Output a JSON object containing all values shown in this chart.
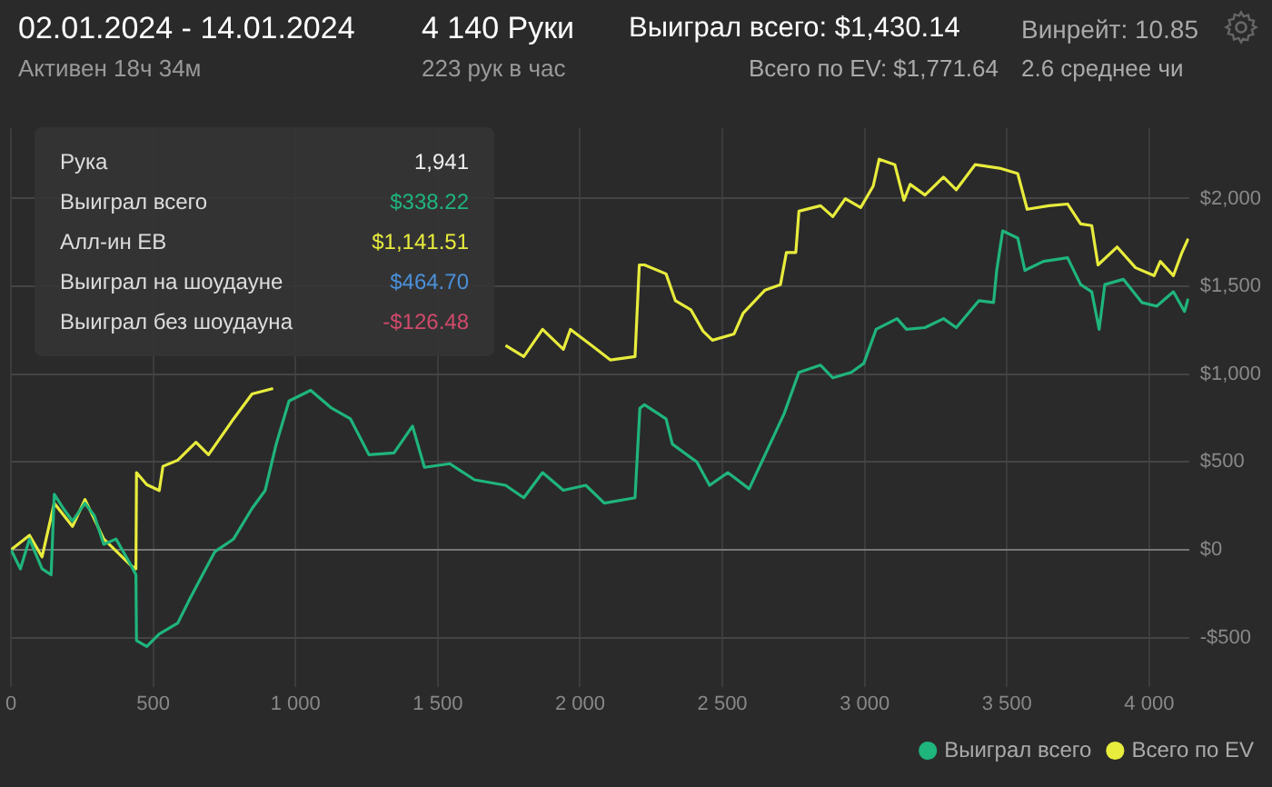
{
  "chart_data": {
    "type": "line",
    "title": "02.01.2024 - 14.01.2024",
    "subtitle": "Активен 18ч 34м",
    "annotations": [
      "4 140 Руки",
      "223 рук в час",
      "Выиграл всего: $1,430.14",
      "Всего по EV: $1,771.64",
      "Винрейт: 10.85",
      "2.6 среднее чи",
      "Рука",
      "1,941",
      "Выиграл всего",
      "$338.22",
      "Алл-ин EB",
      "$1,141.51",
      "Выиграл на шоудауне",
      "$464.70",
      "Выиграл без шоудауна",
      "-$126.48"
    ],
    "xlim": [
      0,
      4140
    ],
    "ylim": [
      -780,
      2400
    ],
    "xticks": [
      0,
      500,
      {
        "value": 1000,
        "label": "1 000"
      },
      {
        "value": 1500,
        "label": "1 500"
      },
      {
        "value": 2000,
        "label": "2 000"
      },
      {
        "value": 2500,
        "label": "2 500"
      },
      {
        "value": 3000,
        "label": "3 000"
      },
      {
        "value": 3500,
        "label": "3 500"
      },
      {
        "value": 4000,
        "label": "4 000"
      }
    ],
    "yticks": [
      {
        "value": -500,
        "label": "-$500"
      },
      {
        "value": 0,
        "label": "$0"
      },
      {
        "value": 500,
        "label": "$500"
      },
      {
        "value": 1000,
        "label": "$1,000"
      },
      {
        "value": 1500,
        "label": "$1,500"
      },
      {
        "value": 2000,
        "label": "$2,000"
      }
    ],
    "grid": true,
    "legend": "bottom right",
    "marker": "none",
    "line_style": "solid",
    "series": [
      {
        "name": "Выиграл всего",
        "color": "#1fb57c",
        "x": [
          0,
          33,
          65,
          109,
          141,
          152,
          184,
          216,
          260,
          293,
          326,
          369,
          423,
          439,
          441,
          477,
          521,
          586,
          630,
          673,
          717,
          782,
          847,
          893,
          932,
          977,
          1053,
          1127,
          1193,
          1258,
          1346,
          1411,
          1453,
          1542,
          1629,
          1738,
          1802,
          1868,
          1941,
          2020,
          2085,
          2193,
          2210,
          2226,
          2302,
          2324,
          2410,
          2455,
          2519,
          2594,
          2650,
          2717,
          2769,
          2845,
          2888,
          2953,
          2997,
          3040,
          3114,
          3147,
          3212,
          3277,
          3322,
          3401,
          3453,
          3464,
          3485,
          3538,
          3563,
          3628,
          3713,
          3759,
          3798,
          3824,
          3844,
          3909,
          3974,
          4026,
          4085,
          4124,
          4137
        ],
        "values": [
          0,
          -109,
          61,
          -109,
          -143,
          316,
          235,
          163,
          265,
          194,
          31,
          61,
          -92,
          -143,
          -517,
          -551,
          -480,
          -418,
          -275,
          -143,
          -10,
          61,
          235,
          337,
          602,
          847,
          908,
          806,
          745,
          541,
          551,
          704,
          469,
          490,
          398,
          367,
          296,
          439,
          338.22,
          367,
          265,
          296,
          806,
          826,
          745,
          602,
          500,
          367,
          439,
          347,
          541,
          775,
          1010,
          1051,
          979,
          1010,
          1061,
          1255,
          1316,
          1255,
          1265,
          1316,
          1265,
          1418,
          1408,
          1591,
          1816,
          1775,
          1591,
          1642,
          1663,
          1510,
          1469,
          1255,
          1510,
          1540,
          1408,
          1387,
          1469,
          1357,
          1430.14
        ]
      },
      {
        "name": "Всего по EV",
        "color": "#e8ec3c",
        "x": [
          0,
          65,
          109,
          152,
          216,
          260,
          326,
          423,
          439,
          441,
          477,
          521,
          534,
          586,
          650,
          694,
          782,
          847,
          921,
          932,
          997,
          1053,
          1127,
          1238,
          1346,
          1411,
          1453,
          1542,
          1629,
          1738,
          1802,
          1868,
          1941,
          1966,
          2041,
          2106,
          2193,
          2208,
          2226,
          2302,
          2335,
          2389,
          2432,
          2465,
          2541,
          2573,
          2650,
          2704,
          2725,
          2758,
          2769,
          2845,
          2888,
          2932,
          2986,
          3030,
          3051,
          3106,
          3138,
          3160,
          3212,
          3277,
          3322,
          3388,
          3474,
          3538,
          3571,
          3647,
          3713,
          3759,
          3798,
          3820,
          3887,
          3952,
          4017,
          4039,
          4085,
          4115,
          4137
        ],
        "values": [
          0,
          82,
          -41,
          265,
          133,
          286,
          61,
          -92,
          -109,
          439,
          371,
          337,
          475,
          510,
          612,
          541,
          745,
          887,
          918,
          null,
          null,
          null,
          null,
          null,
          null,
          null,
          null,
          null,
          null,
          1163,
          1100,
          1255,
          1141.51,
          1255,
          1163,
          1081,
          1100,
          1622,
          1622,
          1571,
          1418,
          1367,
          1245,
          1193,
          1229,
          1347,
          1479,
          1510,
          1693,
          1693,
          1928,
          1959,
          1897,
          1999,
          1949,
          2071,
          2224,
          2193,
          1990,
          2081,
          2020,
          2122,
          2050,
          2193,
          2173,
          2142,
          1939,
          1959,
          1969,
          1856,
          1846,
          1622,
          1724,
          1606,
          1561,
          1642,
          1561,
          1693,
          1771.64
        ]
      }
    ]
  }
}
